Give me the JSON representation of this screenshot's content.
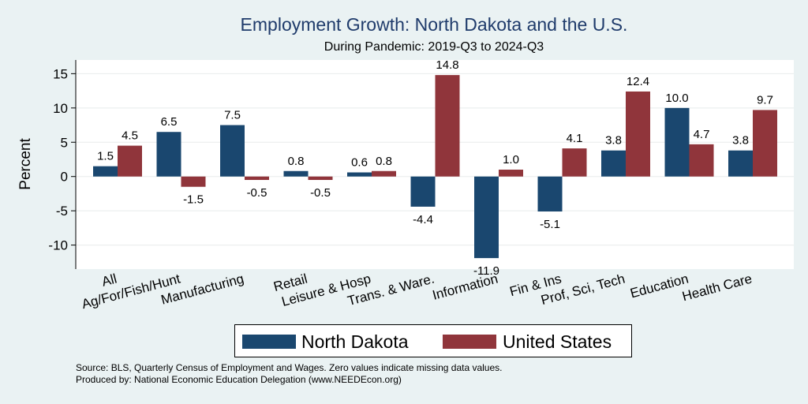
{
  "chart_data": {
    "type": "bar",
    "title": "Employment Growth: North Dakota and the U.S.",
    "subtitle": "During Pandemic: 2019-Q3 to 2024-Q3",
    "xlabel": "",
    "ylabel": "Percent",
    "ylim": [
      -13.5,
      17
    ],
    "yticks": [
      15,
      10,
      5,
      0,
      -5,
      -10
    ],
    "grid": true,
    "legend_position": "bottom",
    "categories": [
      "All",
      "Ag/For/Fish/Hunt",
      "Manufacturing",
      "Retail",
      "Leisure & Hosp",
      "Trans. & Ware.",
      "Information",
      "Fin & Ins",
      "Prof, Sci, Tech",
      "Education",
      "Health Care"
    ],
    "series": [
      {
        "name": "North Dakota",
        "color": "#1a476f",
        "values": [
          1.5,
          6.5,
          7.5,
          0.8,
          0.6,
          -4.4,
          -11.9,
          -5.1,
          3.8,
          10.0,
          3.8
        ],
        "labels": [
          "1.5",
          "6.5",
          "7.5",
          "0.8",
          "0.6",
          "-4.4",
          "-11.9",
          "-5.1",
          "3.8",
          "10.0",
          "3.8"
        ]
      },
      {
        "name": "United States",
        "color": "#90353b",
        "values": [
          4.5,
          -1.5,
          -0.5,
          -0.5,
          0.8,
          14.8,
          1.0,
          4.1,
          12.4,
          4.7,
          9.7
        ],
        "labels": [
          "4.5",
          "-1.5",
          "-0.5",
          "-0.5",
          "0.8",
          "14.8",
          "1.0",
          "4.1",
          "12.4",
          "4.7",
          "9.7"
        ]
      }
    ]
  },
  "footer": {
    "source": "Source: BLS, Quarterly Census of Employment and Wages. Zero values indicate missing data values.",
    "produced": "Produced by: National Economic Education Delegation (www.NEEDEcon.org)"
  }
}
